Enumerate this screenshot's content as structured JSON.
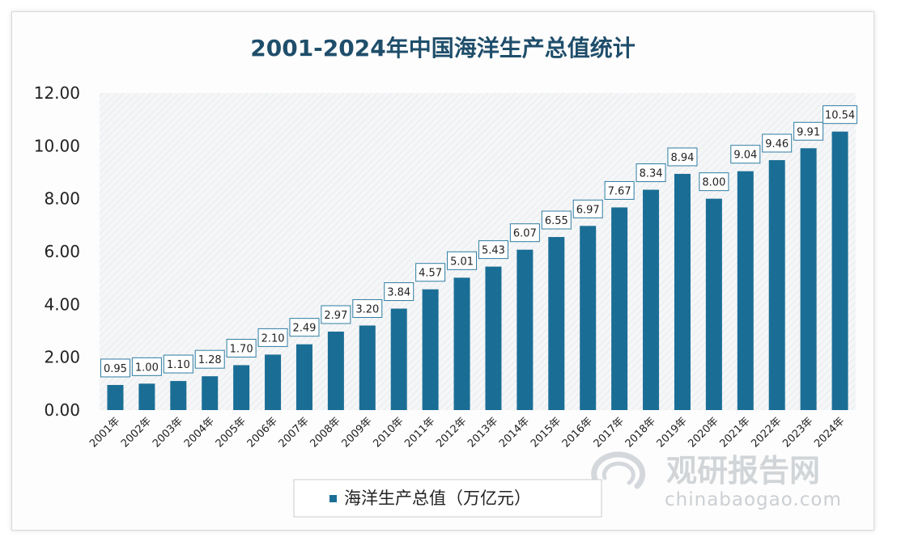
{
  "chart_data": {
    "type": "bar",
    "title": "2001-2024年中国海洋生产总值统计",
    "categories": [
      "2001年",
      "2002年",
      "2003年",
      "2004年",
      "2005年",
      "2006年",
      "2007年",
      "2008年",
      "2009年",
      "2010年",
      "2011年",
      "2012年",
      "2013年",
      "2014年",
      "2015年",
      "2016年",
      "2017年",
      "2018年",
      "2019年",
      "2020年",
      "2021年",
      "2022年",
      "2023年",
      "2024年"
    ],
    "series": [
      {
        "name": "海洋生产总值（万亿元）",
        "values": [
          0.95,
          1.0,
          1.1,
          1.28,
          1.7,
          2.1,
          2.49,
          2.97,
          3.2,
          3.84,
          4.57,
          5.01,
          5.43,
          6.07,
          6.55,
          6.97,
          7.67,
          8.34,
          8.94,
          8.0,
          9.04,
          9.46,
          9.91,
          10.54
        ],
        "labels": [
          "0.95",
          "1.00",
          "1.10",
          "1.28",
          "1.70",
          "2.10",
          "2.49",
          "2.97",
          "3.20",
          "3.84",
          "4.57",
          "5.01",
          "5.43",
          "6.07",
          "6.55",
          "6.97",
          "7.67",
          "8.34",
          "8.94",
          "8.00",
          "9.04",
          "9.46",
          "9.91",
          "10.54"
        ],
        "color": "#1a6e96"
      }
    ],
    "ylim": [
      0,
      12
    ],
    "yticks": [
      "0.00",
      "2.00",
      "4.00",
      "6.00",
      "8.00",
      "10.00",
      "12.00"
    ],
    "xlabel": "",
    "ylabel": "",
    "grid": false,
    "legend_position": "bottom-center"
  },
  "watermark": {
    "name": "观研报告网",
    "site": "chinabaogao.com"
  }
}
